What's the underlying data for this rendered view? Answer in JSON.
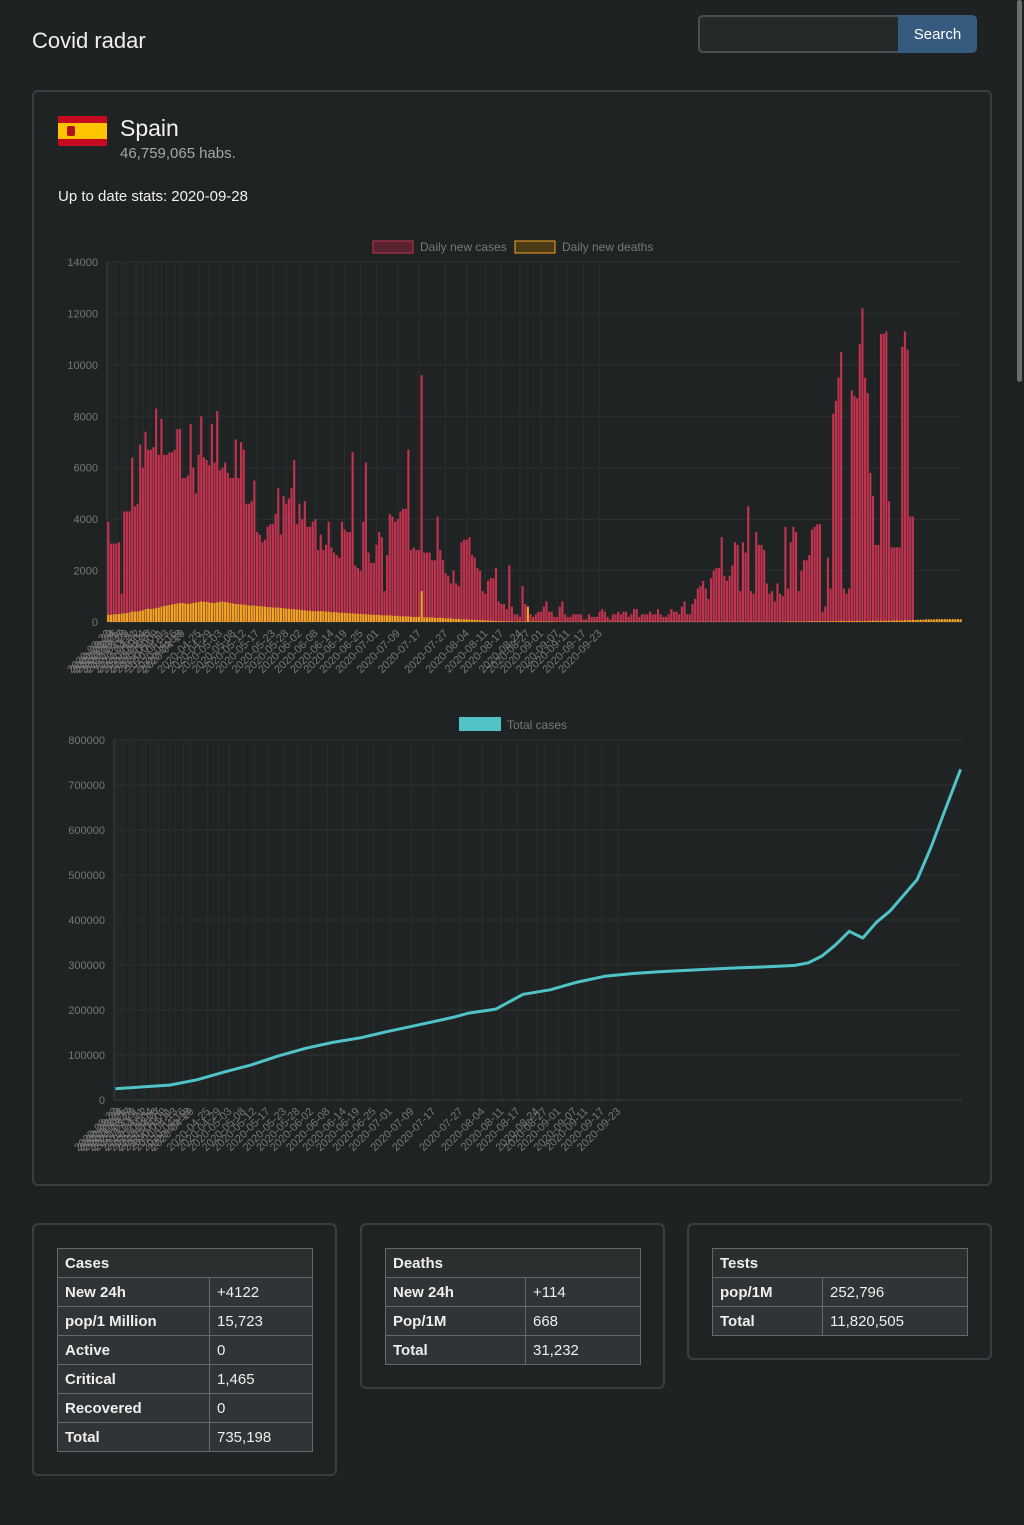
{
  "header": {
    "app_title": "Covid radar",
    "search_placeholder": "",
    "search_value": "",
    "search_label": "Search"
  },
  "country": {
    "name": "Spain",
    "population": "46,759,065",
    "population_unit": "habs.",
    "updated_label": "Up to date stats:",
    "updated_date": "2020-09-28"
  },
  "colors": {
    "cases": "#c2334f",
    "deaths": "#f5a623",
    "total": "#4fc3c7",
    "accent": "#375a7f"
  },
  "chart_data": [
    {
      "type": "bar",
      "legend": [
        "Daily new cases",
        "Daily new deaths"
      ],
      "legend_position": "top",
      "grid": true,
      "ylim": [
        0,
        14000
      ],
      "yticks": [
        0,
        2000,
        4000,
        6000,
        8000,
        10000,
        12000,
        14000
      ],
      "date_start": "2020-03-22",
      "x_tick_labels": [
        "2020-03-22",
        "2020-03-23",
        "2020-03-24",
        "2020-03-25",
        "2020-03-27",
        "2020-03-28",
        "2020-03-29",
        "2020-04-01",
        "2020-04-02",
        "2020-04-04",
        "2020-04-06",
        "2020-04-07",
        "2020-04-09",
        "2020-04-11",
        "2020-04-13",
        "2020-04-16",
        "2020-04-18",
        "2020-04-19",
        "2020-04-25",
        "2020-04-29",
        "2020-05-03",
        "2020-05-08",
        "2020-05-12",
        "2020-05-17",
        "2020-05-23",
        "2020-05-28",
        "2020-06-02",
        "2020-06-08",
        "2020-06-14",
        "2020-06-19",
        "2020-06-25",
        "2020-07-01",
        "2020-07-09",
        "2020-07-17",
        "2020-07-27",
        "2020-08-04",
        "2020-08-11",
        "2020-08-17",
        "2020-08-24",
        "2020-08-27",
        "2020-09-01",
        "2020-09-07",
        "2020-09-11",
        "2020-09-17",
        "2020-09-23"
      ],
      "series": [
        {
          "name": "Daily new cases",
          "values": [
            3900,
            3050,
            3050,
            3050,
            3100,
            1100,
            4300,
            4300,
            4300,
            6400,
            4500,
            4600,
            6900,
            6000,
            7400,
            6700,
            6700,
            6800,
            8300,
            6500,
            7900,
            6500,
            6500,
            6600,
            6600,
            6700,
            7500,
            7500,
            5600,
            5600,
            5700,
            7700,
            6000,
            5000,
            6500,
            8000,
            6400,
            6300,
            6100,
            7700,
            6200,
            8200,
            5900,
            6000,
            6200,
            5800,
            5600,
            5600,
            7100,
            5600,
            7000,
            6700,
            4600,
            4600,
            4700,
            5500,
            3500,
            3400,
            3100,
            3200,
            3700,
            3800,
            3800,
            4200,
            5200,
            3400,
            4900,
            4600,
            4800,
            5200,
            6300,
            3800,
            4600,
            4000,
            4700,
            3700,
            3700,
            3900,
            4000,
            2800,
            3400,
            2800,
            3000,
            3900,
            2900,
            2700,
            2600,
            2500,
            3900,
            3600,
            3500,
            3500,
            6600,
            2200,
            2100,
            2000,
            3900,
            6200,
            2700,
            2300,
            2300,
            3000,
            3500,
            3300,
            1200,
            2600,
            4200,
            4100,
            3900,
            4000,
            4300,
            4400,
            4400,
            6700,
            2800,
            2900,
            2800,
            2800,
            9600,
            2700,
            2700,
            2700,
            2400,
            2400,
            4100,
            2800,
            2400,
            1900,
            1800,
            1500,
            2000,
            1500,
            1400,
            3100,
            3200,
            3200,
            3300,
            2600,
            2500,
            2100,
            2000,
            1200,
            1100,
            1600,
            1700,
            1700,
            2100,
            800,
            700,
            700,
            500,
            2200,
            600,
            300,
            300,
            200,
            1400,
            700,
            500,
            300,
            200,
            300,
            400,
            400,
            600,
            800,
            400,
            400,
            200,
            200,
            600,
            800,
            300,
            200,
            200,
            300,
            300,
            300,
            300,
            100,
            100,
            300,
            200,
            200,
            200,
            400,
            500,
            400,
            200,
            100,
            300,
            300,
            400,
            300,
            400,
            400,
            200,
            300,
            500,
            500,
            200,
            300,
            300,
            300,
            400,
            300,
            300,
            500,
            300,
            200,
            200,
            300,
            500,
            400,
            400,
            300,
            600,
            800,
            300,
            300,
            700,
            900,
            1300,
            1400,
            1600,
            1300,
            900,
            1700,
            2000,
            2100,
            2100,
            3300,
            1800,
            1600,
            1800,
            2200,
            3100,
            3000,
            1200,
            3100,
            2700,
            4500,
            1200,
            1100,
            3500,
            3000,
            3000,
            2800,
            1500,
            1100,
            1200,
            800,
            1500,
            1100,
            1000,
            3700,
            1300,
            3100,
            3700,
            3500,
            1200,
            2000,
            2400,
            2400,
            2600,
            3600,
            3700,
            3800,
            3800,
            400,
            600,
            2500,
            1300,
            8100,
            8600,
            9500,
            10500,
            1300,
            1100,
            1300,
            9000,
            8800,
            8700,
            10800,
            12200,
            9500,
            8900,
            5800,
            4900,
            3000,
            3000,
            11200,
            11200,
            11300,
            4700,
            2900,
            2900,
            2900,
            2900,
            10700,
            11300,
            10600,
            4100,
            4100
          ]
        },
        {
          "name": "Daily new deaths",
          "values": [
            280,
            280,
            300,
            300,
            310,
            330,
            330,
            350,
            370,
            410,
            400,
            410,
            430,
            450,
            500,
            520,
            500,
            520,
            540,
            560,
            600,
            620,
            640,
            660,
            680,
            700,
            720,
            740,
            740,
            720,
            700,
            720,
            740,
            760,
            780,
            800,
            780,
            780,
            760,
            740,
            740,
            760,
            780,
            800,
            780,
            760,
            740,
            720,
            700,
            700,
            680,
            680,
            660,
            640,
            640,
            640,
            620,
            620,
            600,
            600,
            580,
            580,
            560,
            560,
            560,
            540,
            540,
            520,
            520,
            500,
            500,
            480,
            480,
            460,
            460,
            440,
            440,
            420,
            420,
            420,
            420,
            420,
            400,
            400,
            380,
            380,
            380,
            360,
            360,
            360,
            340,
            340,
            340,
            320,
            320,
            320,
            300,
            300,
            300,
            280,
            280,
            280,
            280,
            260,
            260,
            260,
            260,
            240,
            240,
            240,
            220,
            220,
            220,
            220,
            200,
            200,
            200,
            200,
            1200,
            180,
            180,
            180,
            180,
            160,
            160,
            160,
            160,
            140,
            140,
            140,
            120,
            120,
            120,
            100,
            100,
            100,
            90,
            90,
            80,
            80,
            70,
            70,
            60,
            60,
            50,
            50,
            40,
            40,
            30,
            30,
            30,
            20,
            20,
            20,
            20,
            20,
            20,
            20,
            600,
            20,
            20,
            20,
            20,
            20,
            20,
            20,
            20,
            20,
            20,
            10,
            10,
            10,
            10,
            10,
            10,
            10,
            10,
            10,
            10,
            10,
            10,
            10,
            10,
            10,
            10,
            10,
            10,
            10,
            10,
            10,
            10,
            10,
            10,
            10,
            10,
            10,
            10,
            10,
            10,
            10,
            10,
            10,
            10,
            10,
            10,
            10,
            10,
            10,
            10,
            10,
            10,
            10,
            10,
            10,
            10,
            10,
            10,
            10,
            10,
            10,
            10,
            10,
            10,
            10,
            10,
            10,
            10,
            10,
            10,
            10,
            10,
            10,
            10,
            10,
            10,
            10,
            10,
            10,
            10,
            10,
            10,
            10,
            10,
            10,
            10,
            10,
            10,
            10,
            10,
            10,
            10,
            10,
            10,
            10,
            10,
            20,
            20,
            20,
            20,
            20,
            20,
            20,
            20,
            20,
            30,
            30,
            30,
            30,
            30,
            30,
            30,
            30,
            30,
            30,
            30,
            40,
            40,
            40,
            40,
            40,
            40,
            40,
            40,
            40,
            40,
            40,
            40,
            50,
            50,
            50,
            50,
            50,
            50,
            50,
            50,
            50,
            60,
            60,
            60,
            60,
            70,
            70,
            70,
            80,
            80,
            90,
            90,
            90,
            100,
            100,
            100,
            100,
            110,
            110,
            110,
            110,
            110,
            110,
            110,
            110,
            110,
            110
          ]
        }
      ]
    },
    {
      "type": "line",
      "legend": [
        "Total cases"
      ],
      "legend_position": "top",
      "grid": true,
      "ylim": [
        0,
        800000
      ],
      "yticks": [
        0,
        100000,
        200000,
        300000,
        400000,
        500000,
        600000,
        700000,
        800000
      ],
      "date_start": "2020-03-22",
      "x_tick_labels": [
        "2020-03-22",
        "2020-03-23",
        "2020-03-24",
        "2020-03-25",
        "2020-03-27",
        "2020-03-28",
        "2020-03-29",
        "2020-04-01",
        "2020-04-02",
        "2020-04-04",
        "2020-04-06",
        "2020-04-07",
        "2020-04-09",
        "2020-04-11",
        "2020-04-13",
        "2020-04-16",
        "2020-04-18",
        "2020-04-19",
        "2020-04-25",
        "2020-04-29",
        "2020-05-03",
        "2020-05-08",
        "2020-05-12",
        "2020-05-17",
        "2020-05-23",
        "2020-05-28",
        "2020-06-02",
        "2020-06-08",
        "2020-06-14",
        "2020-06-19",
        "2020-06-25",
        "2020-07-01",
        "2020-07-09",
        "2020-07-17",
        "2020-07-27",
        "2020-08-04",
        "2020-08-11",
        "2020-08-17",
        "2020-08-24",
        "2020-08-27",
        "2020-09-01",
        "2020-09-07",
        "2020-09-11",
        "2020-09-17",
        "2020-09-23"
      ],
      "series": [
        {
          "name": "Total cases",
          "x_index": [
            0,
            10,
            20,
            30,
            40,
            50,
            60,
            70,
            80,
            90,
            100,
            110,
            120,
            125,
            130,
            140,
            150,
            160,
            170,
            180,
            190,
            200,
            210,
            220,
            230,
            240,
            250,
            255,
            260,
            265,
            270,
            275,
            280,
            285,
            290,
            295,
            300,
            305,
            311
          ],
          "values": [
            25000,
            29000,
            33000,
            45000,
            62000,
            78000,
            98000,
            115000,
            128000,
            138000,
            152000,
            165000,
            178000,
            185000,
            193000,
            202000,
            235000,
            245000,
            262000,
            275000,
            281000,
            285000,
            288000,
            291000,
            294000,
            296000,
            299000,
            305000,
            320000,
            345000,
            375000,
            360000,
            395000,
            420000,
            455000,
            490000,
            560000,
            640000,
            735000
          ]
        }
      ]
    }
  ],
  "stats": {
    "cases": {
      "title": "Cases",
      "rows": [
        {
          "label": "New 24h",
          "value": "+4122"
        },
        {
          "label": "pop/1 Million",
          "value": "15,723"
        },
        {
          "label": "Active",
          "value": "0"
        },
        {
          "label": "Critical",
          "value": "1,465"
        },
        {
          "label": "Recovered",
          "value": "0"
        },
        {
          "label": "Total",
          "value": "735,198"
        }
      ]
    },
    "deaths": {
      "title": "Deaths",
      "rows": [
        {
          "label": "New 24h",
          "value": "+114"
        },
        {
          "label": "Pop/1M",
          "value": "668"
        },
        {
          "label": "Total",
          "value": "31,232"
        }
      ]
    },
    "tests": {
      "title": "Tests",
      "rows": [
        {
          "label": "pop/1M",
          "value": "252,796"
        },
        {
          "label": "Total",
          "value": "11,820,505"
        }
      ]
    }
  }
}
